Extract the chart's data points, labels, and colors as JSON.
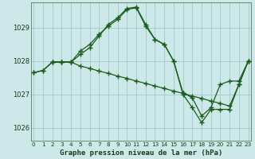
{
  "title": "Graphe pression niveau de la mer (hPa)",
  "background_color": "#cde8e8",
  "grid_color": "#a0c8c8",
  "line_color": "#1a5c1a",
  "ylim": [
    1025.6,
    1029.75
  ],
  "yticks": [
    1026,
    1027,
    1028,
    1029
  ],
  "xlim": [
    -0.3,
    23.3
  ],
  "xticks": [
    0,
    1,
    2,
    3,
    4,
    5,
    6,
    7,
    8,
    9,
    10,
    11,
    12,
    13,
    14,
    15,
    16,
    17,
    18,
    19,
    20,
    21,
    22,
    23
  ],
  "line1_x": [
    0,
    1,
    2,
    3,
    4,
    5,
    6,
    7,
    8,
    9,
    10,
    11,
    12,
    13,
    14,
    15,
    16,
    17,
    18,
    19,
    20,
    21,
    22,
    23
  ],
  "line1_y": [
    1027.65,
    1027.72,
    1027.97,
    1027.97,
    1027.97,
    1027.85,
    1027.78,
    1027.7,
    1027.63,
    1027.55,
    1027.48,
    1027.4,
    1027.33,
    1027.25,
    1027.18,
    1027.1,
    1027.03,
    1026.95,
    1026.88,
    1026.8,
    1026.73,
    1026.65,
    1027.3,
    1028.0
  ],
  "line2_x": [
    2,
    3,
    4,
    5,
    6,
    7,
    8,
    9,
    10,
    11,
    12,
    13,
    14,
    15,
    16,
    17,
    18,
    19,
    20,
    21,
    22,
    23
  ],
  "line2_y": [
    1027.97,
    1027.97,
    1027.97,
    1028.3,
    1028.5,
    1028.8,
    1029.05,
    1029.25,
    1029.55,
    1029.6,
    1029.05,
    1028.65,
    1028.5,
    1028.0,
    1027.0,
    1026.6,
    1026.15,
    1026.55,
    1026.55,
    1026.55,
    1027.3,
    1028.0
  ],
  "line3_x": [
    0,
    1,
    2,
    3,
    4,
    5,
    6,
    7,
    8,
    9,
    10,
    11,
    12,
    13,
    14,
    15,
    16,
    17,
    18,
    19,
    20,
    21,
    22,
    23
  ],
  "line3_y": [
    1027.65,
    1027.72,
    1027.97,
    1027.97,
    1027.97,
    1028.2,
    1028.4,
    1028.75,
    1029.1,
    1029.3,
    1029.58,
    1029.62,
    1029.1,
    1028.65,
    1028.5,
    1028.0,
    1027.05,
    1026.9,
    1026.35,
    1026.6,
    1027.3,
    1027.4,
    1027.4,
    1028.0
  ]
}
